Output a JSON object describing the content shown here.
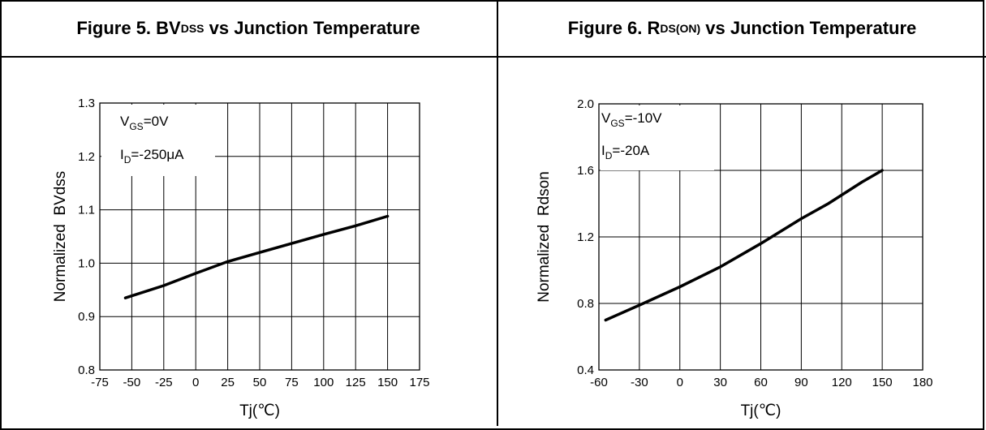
{
  "figures": [
    {
      "title_prefix": "Figure 5. BV",
      "title_sub": "DSS",
      "title_suffix": " vs Junction Temperature"
    },
    {
      "title_prefix": "Figure 6. R",
      "title_sub": "DS(ON)",
      "title_suffix": " vs Junction Temperature"
    }
  ],
  "chart_data": [
    {
      "type": "line",
      "xlabel": "Tj(℃)",
      "ylabel": "Normalized  BVdss",
      "xlim": [
        -75,
        175
      ],
      "ylim": [
        0.8,
        1.3
      ],
      "x_ticks": [
        -75,
        -50,
        -25,
        0,
        25,
        50,
        75,
        100,
        125,
        150,
        175
      ],
      "y_ticks": [
        "0.8",
        "0.9",
        "1.0",
        "1.1",
        "1.2",
        "1.3"
      ],
      "grid": true,
      "annotations": [
        {
          "main": "V",
          "sub": "GS",
          "rest": "=0V"
        },
        {
          "main": "I",
          "sub": "D",
          "rest": "=-250μA"
        }
      ],
      "series": [
        {
          "x": [
            -55,
            -25,
            0,
            25,
            50,
            75,
            100,
            125,
            150
          ],
          "y": [
            0.935,
            0.958,
            0.981,
            1.003,
            1.02,
            1.037,
            1.054,
            1.07,
            1.088
          ]
        }
      ]
    },
    {
      "type": "line",
      "xlabel": "Tj(℃)",
      "ylabel": "Normalized  Rdson",
      "xlim": [
        -60,
        180
      ],
      "ylim": [
        0.4,
        2.0
      ],
      "x_ticks": [
        -60,
        -30,
        0,
        30,
        60,
        90,
        120,
        150,
        180
      ],
      "y_ticks": [
        "0.4",
        "0.8",
        "1.2",
        "1.6",
        "2.0"
      ],
      "grid": true,
      "annotations": [
        {
          "main": "V",
          "sub": "GS",
          "rest": "=-10V"
        },
        {
          "main": "I",
          "sub": "D",
          "rest": "=-20A"
        }
      ],
      "series": [
        {
          "x": [
            -55,
            -30,
            0,
            30,
            60,
            90,
            110,
            135,
            150
          ],
          "y": [
            0.7,
            0.79,
            0.9,
            1.02,
            1.16,
            1.31,
            1.4,
            1.53,
            1.6
          ]
        }
      ]
    }
  ]
}
